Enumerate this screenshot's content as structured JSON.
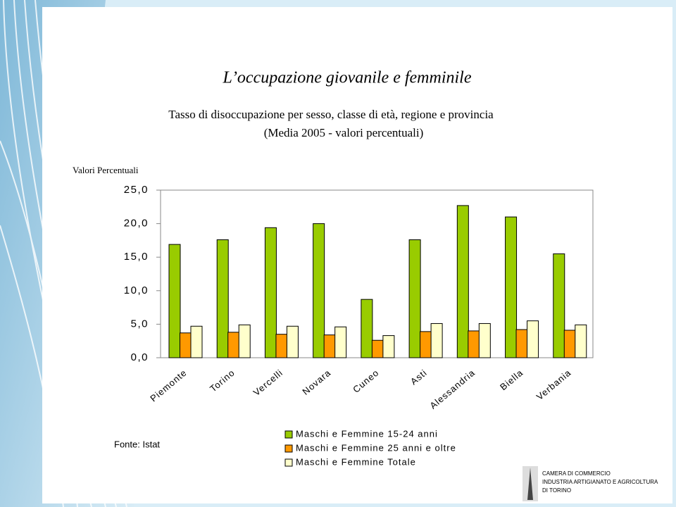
{
  "chart_data": {
    "type": "bar",
    "title": "L’occupazione giovanile e femminile",
    "subtitle": [
      "Tasso di disoccupazione per sesso, classe di età, regione e provincia",
      "(Media 2005 - valori percentuali)"
    ],
    "y_label": "Valori Percentuali",
    "source": "Fonte: Istat",
    "categories": [
      "Piemonte",
      "Torino",
      "Vercelli",
      "Novara",
      "Cuneo",
      "Asti",
      "Alessandria",
      "Biella",
      "Verbania"
    ],
    "series": [
      {
        "name": "Maschi e Femmine 15-24 anni",
        "color": "#99cc00",
        "values": [
          16.9,
          17.6,
          19.4,
          20.0,
          8.7,
          17.6,
          22.7,
          21.0,
          15.5
        ]
      },
      {
        "name": "Maschi e Femmine 25 anni e oltre",
        "color": "#ff9900",
        "values": [
          3.7,
          3.8,
          3.5,
          3.4,
          2.6,
          3.9,
          4.0,
          4.2,
          4.1
        ]
      },
      {
        "name": "Maschi e Femmine Totale",
        "color": "#ffffcc",
        "values": [
          4.7,
          4.9,
          4.7,
          4.6,
          3.3,
          5.1,
          5.1,
          5.5,
          4.9
        ]
      }
    ],
    "ylim": [
      0,
      25
    ],
    "yticks": [
      {
        "value": 0,
        "label": "0,0"
      },
      {
        "value": 5,
        "label": "5,0"
      },
      {
        "value": 10,
        "label": "10,0"
      },
      {
        "value": 15,
        "label": "15,0"
      },
      {
        "value": 20,
        "label": "20,0"
      },
      {
        "value": 25,
        "label": "25,0"
      }
    ],
    "grid": false,
    "legend": "bottom"
  },
  "logo": [
    "CAMERA DI COMMERCIO",
    "INDUSTRIA ARTIGIANATO E AGRICOLTURA",
    "DI TORINO"
  ]
}
